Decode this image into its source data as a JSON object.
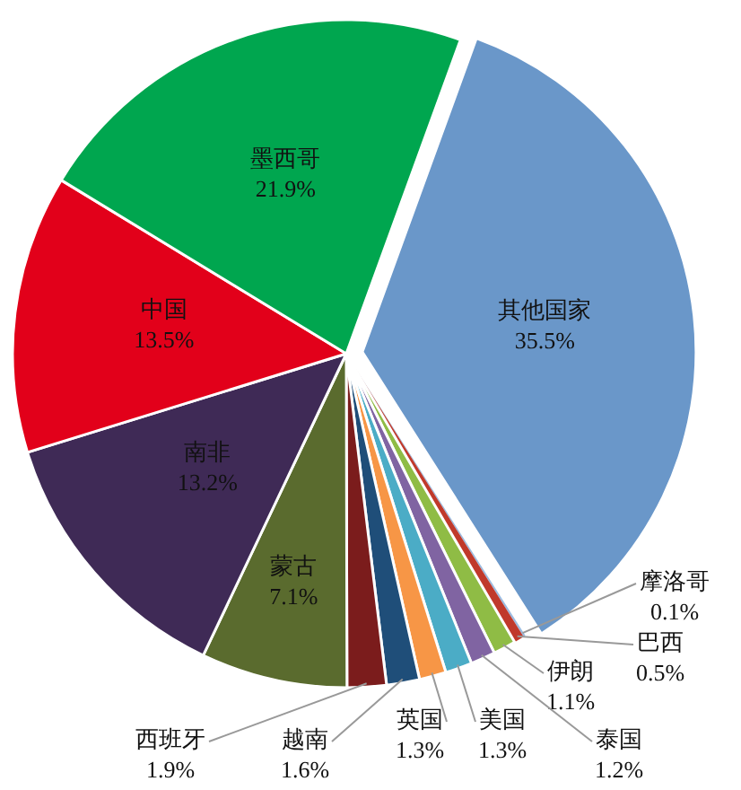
{
  "chart_data": {
    "type": "pie",
    "categories": [
      "其他国家",
      "摩洛哥",
      "巴西",
      "伊朗",
      "泰国",
      "美国",
      "英国",
      "越南",
      "西班牙",
      "蒙古",
      "南非",
      "中国",
      "墨西哥"
    ],
    "values": [
      35.5,
      0.1,
      0.5,
      1.1,
      1.2,
      1.3,
      1.3,
      1.6,
      1.9,
      7.1,
      13.2,
      13.5,
      21.9
    ],
    "value_labels": [
      "35.5%",
      "0.1%",
      "0.5%",
      "1.1%",
      "1.2%",
      "1.3%",
      "1.3%",
      "1.6%",
      "1.9%",
      "7.1%",
      "13.2%",
      "13.5%",
      "21.9%"
    ],
    "colors": [
      "#6a97c9",
      "#9bbbe0",
      "#c0392b",
      "#8fbc45",
      "#8064a2",
      "#4bacc6",
      "#f79646",
      "#1f4e79",
      "#7b1c1c",
      "#5a6b2e",
      "#3f2a56",
      "#e2001a",
      "#00a64f"
    ]
  }
}
